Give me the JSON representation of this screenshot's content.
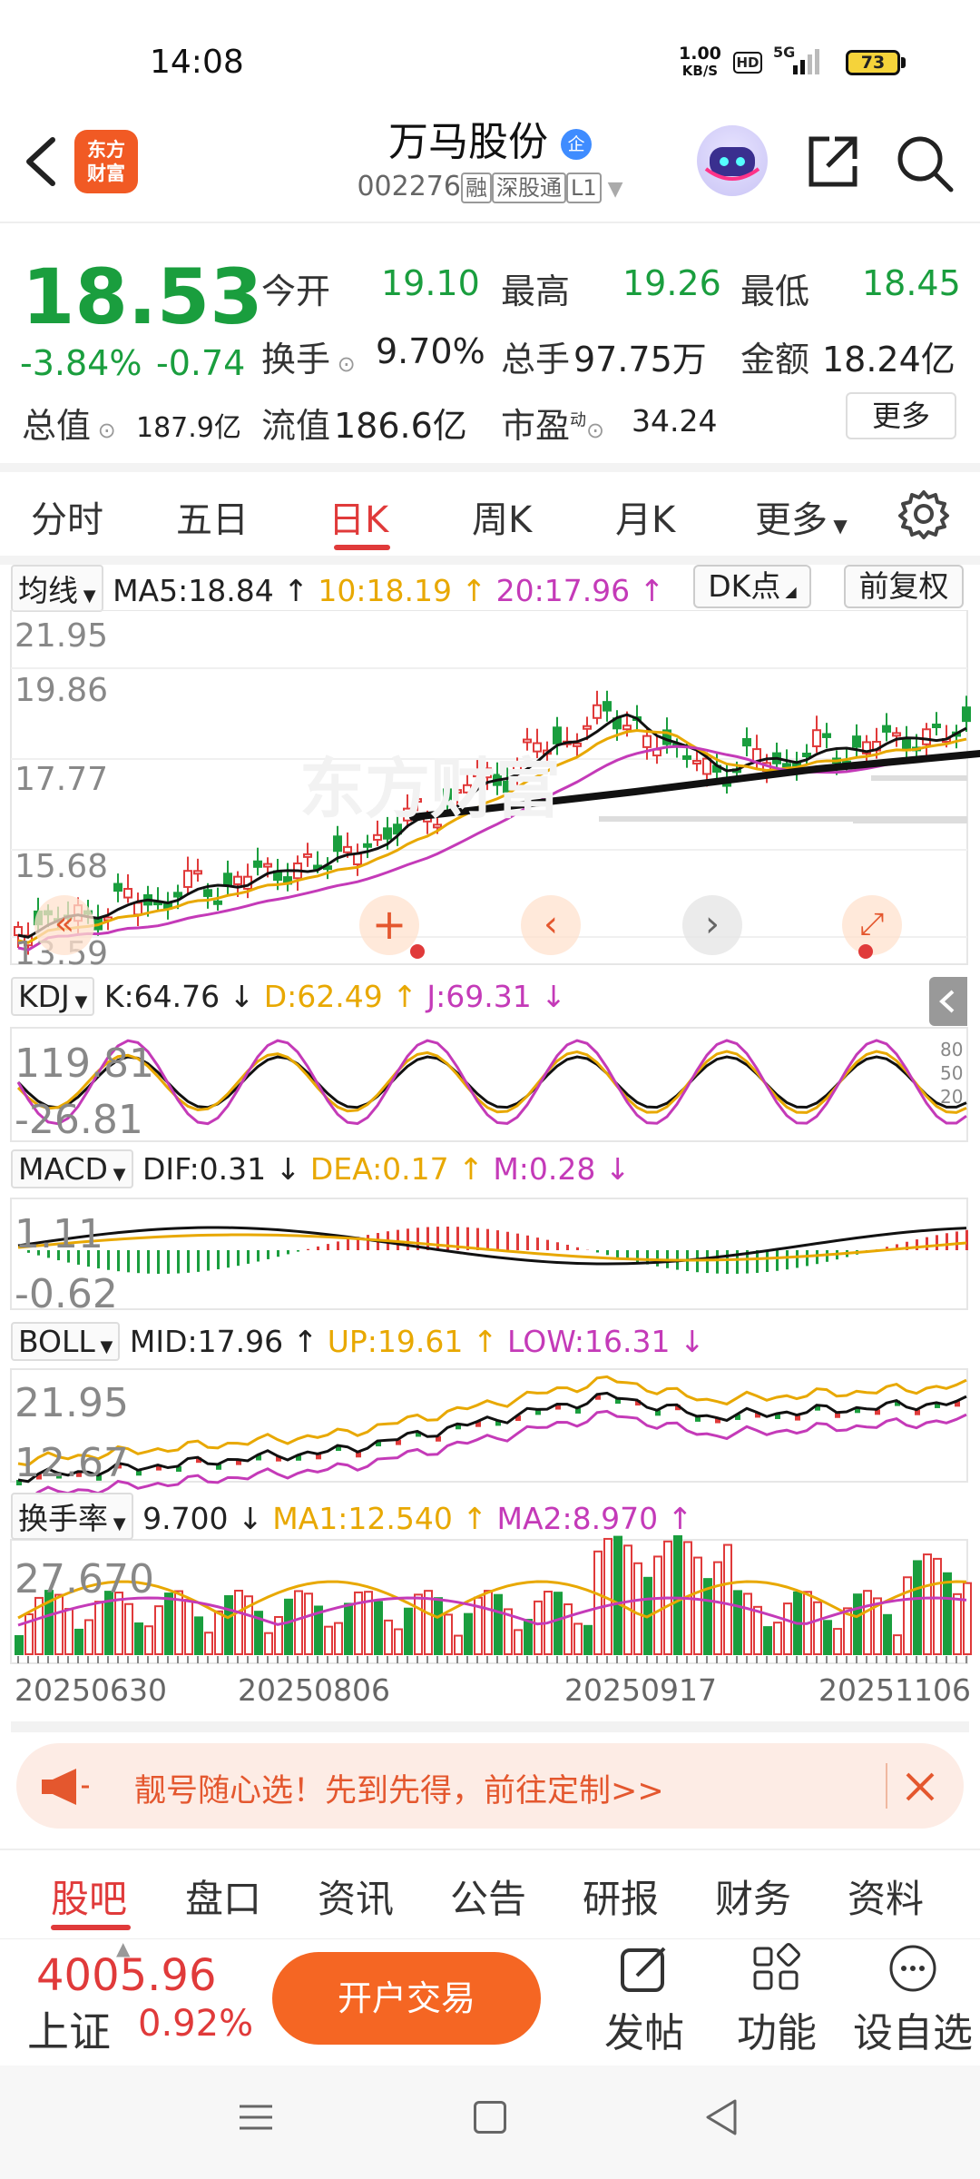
{
  "status": {
    "time": "14:08",
    "speed_top": "1.00",
    "speed_bottom": "KB/S",
    "hd": "HD",
    "net": "5G",
    "battery": "73"
  },
  "header": {
    "logo_line1": "东方",
    "logo_line2": "财富",
    "title": "万马股份",
    "badge": "企",
    "code": "002276",
    "tag1": "融",
    "tag2": "深股通",
    "tag3": "L1"
  },
  "quote": {
    "price": "18.53",
    "pct": "-3.84%",
    "chg": "-0.74",
    "open_label": "今开",
    "open": "19.10",
    "high_label": "最高",
    "high": "19.26",
    "low_label": "最低",
    "low": "18.45",
    "turnover_label": "换手",
    "turnover": "9.70%",
    "vol_label": "总手",
    "vol": "97.75万",
    "amount_label": "金额",
    "amount": "18.24亿",
    "mktcap_label": "总值",
    "mktcap": "187.9亿",
    "float_label": "流值",
    "float": "186.6亿",
    "pe_label": "市盈",
    "pe_sup": "动",
    "pe": "34.24",
    "more": "更多"
  },
  "tabs": {
    "t1": "分时",
    "t2": "五日",
    "t3": "日K",
    "t4": "周K",
    "t5": "月K",
    "t6": "更多",
    "active": "日K"
  },
  "main": {
    "dd": "均线",
    "ma5": "MA5:18.84",
    "ma10": "10:18.19",
    "ma20": "20:17.96",
    "dk": "DK点",
    "fq": "前复权",
    "y1": "21.95",
    "y2": "19.86",
    "y3": "17.77",
    "y4": "15.68",
    "y5": "13.59",
    "watermark": "东方财富"
  },
  "kdj": {
    "dd": "KDJ",
    "k": "K:64.76",
    "d": "D:62.49",
    "j": "J:69.31",
    "top": "119.81",
    "bottom": "-26.81",
    "l80": "80",
    "l50": "50",
    "l20": "20"
  },
  "macd": {
    "dd": "MACD",
    "dif": "DIF:0.31",
    "dea": "DEA:0.17",
    "m": "M:0.28",
    "top": "1.11",
    "bottom": "-0.62"
  },
  "boll": {
    "dd": "BOLL",
    "mid": "MID:17.96",
    "up": "UP:19.61",
    "low": "LOW:16.31",
    "top": "21.95",
    "bottom": "12.67"
  },
  "turn": {
    "dd": "换手率",
    "val": "9.700",
    "ma1": "MA1:12.540",
    "ma2": "MA2:8.970",
    "top": "27.670"
  },
  "dates": {
    "d1": "20250630",
    "d2": "20250806",
    "d3": "20250917",
    "d4": "20251106"
  },
  "ad": {
    "text": "靓号随心选！先到先得，前往定制>>"
  },
  "bottomtabs": [
    "股吧",
    "盘口",
    "资讯",
    "公告",
    "研报",
    "财务",
    "资料"
  ],
  "footer": {
    "index_value": "4005.96",
    "index_name": "上证",
    "index_pct": "0.92%",
    "open": "开户交易",
    "post": "发帖",
    "func": "功能",
    "watch": "设自选"
  },
  "colors": {
    "up": "#e03a3a",
    "down": "#1a9e3e",
    "ma10": "#e8a800",
    "ma20": "#c43ab8",
    "brand": "#f56623"
  }
}
